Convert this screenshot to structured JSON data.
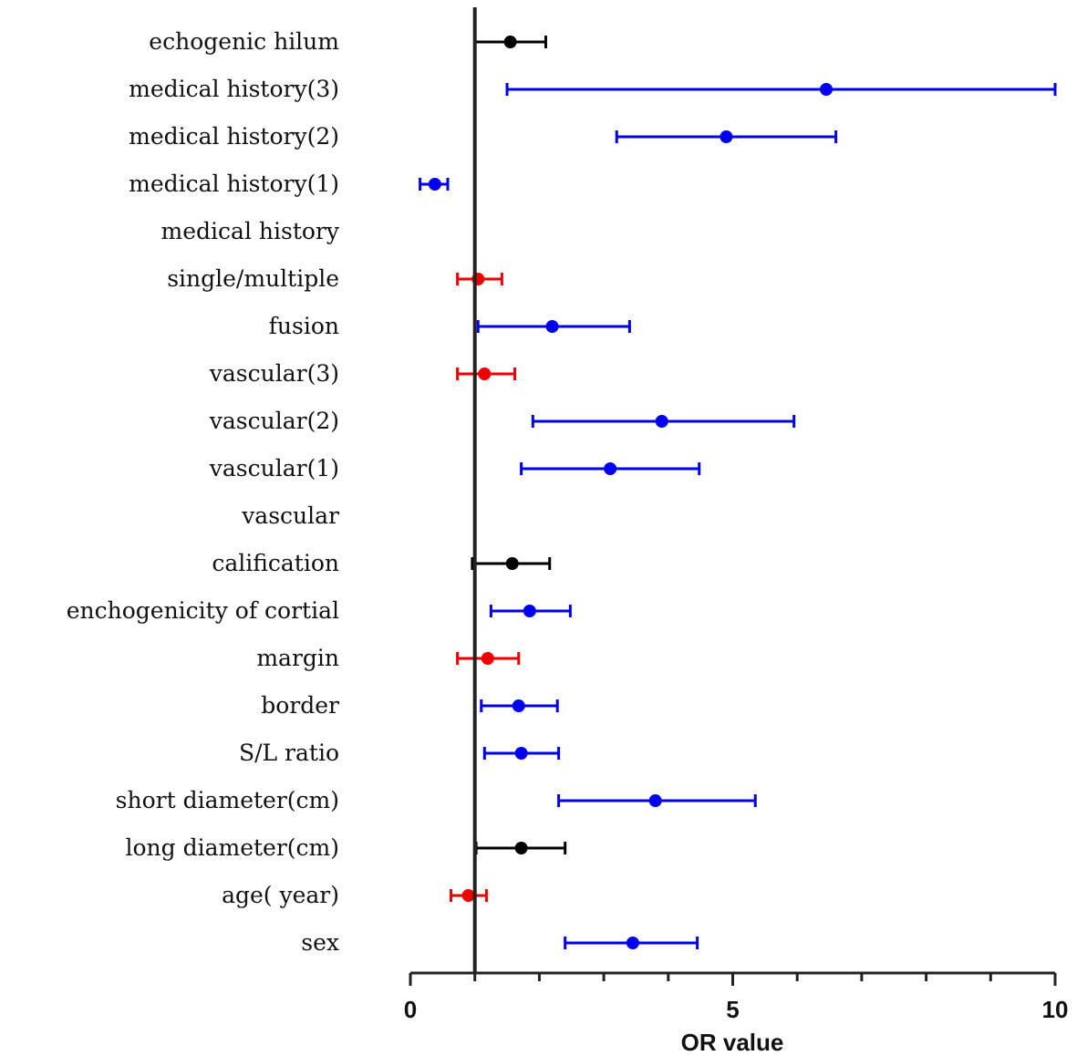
{
  "chart_data": {
    "type": "forest",
    "xlabel": "OR value",
    "xlim": [
      0,
      10
    ],
    "reference_line": 1,
    "major_ticks": [
      0,
      5,
      10
    ],
    "minor_step": 1,
    "colors": {
      "black": "#000000",
      "blue": "#0000ee",
      "red": "#ee0000"
    },
    "rows": [
      {
        "label": "echogenic hilum",
        "or": 1.55,
        "lo": 1.0,
        "hi": 2.1,
        "color": "black"
      },
      {
        "label": "medical history(3)",
        "or": 6.45,
        "lo": 1.5,
        "hi": 10.0,
        "color": "blue"
      },
      {
        "label": "medical history(2)",
        "or": 4.9,
        "lo": 3.2,
        "hi": 6.6,
        "color": "blue"
      },
      {
        "label": "medical history(1)",
        "or": 0.38,
        "lo": 0.15,
        "hi": 0.58,
        "color": "blue"
      },
      {
        "label": "medical history",
        "or": null,
        "lo": null,
        "hi": null,
        "color": "black"
      },
      {
        "label": "single/multiple",
        "or": 1.05,
        "lo": 0.73,
        "hi": 1.42,
        "color": "red"
      },
      {
        "label": "fusion",
        "or": 2.2,
        "lo": 1.05,
        "hi": 3.4,
        "color": "blue"
      },
      {
        "label": "vascular(3)",
        "or": 1.15,
        "lo": 0.73,
        "hi": 1.62,
        "color": "red"
      },
      {
        "label": "vascular(2)",
        "or": 3.9,
        "lo": 1.9,
        "hi": 5.95,
        "color": "blue"
      },
      {
        "label": "vascular(1)",
        "or": 3.1,
        "lo": 1.72,
        "hi": 4.48,
        "color": "blue"
      },
      {
        "label": "vascular",
        "or": null,
        "lo": null,
        "hi": null,
        "color": "black"
      },
      {
        "label": "calification",
        "or": 1.58,
        "lo": 0.96,
        "hi": 2.16,
        "color": "black"
      },
      {
        "label": "enchogenicity of cortial",
        "or": 1.85,
        "lo": 1.25,
        "hi": 2.48,
        "color": "blue"
      },
      {
        "label": "margin",
        "or": 1.2,
        "lo": 0.73,
        "hi": 1.68,
        "color": "red"
      },
      {
        "label": "border",
        "or": 1.68,
        "lo": 1.1,
        "hi": 2.28,
        "color": "blue"
      },
      {
        "label": "S/L ratio",
        "or": 1.72,
        "lo": 1.15,
        "hi": 2.3,
        "color": "blue"
      },
      {
        "label": "short diameter(cm)",
        "or": 3.8,
        "lo": 2.3,
        "hi": 5.35,
        "color": "blue"
      },
      {
        "label": "long diameter(cm)",
        "or": 1.72,
        "lo": 1.02,
        "hi": 2.4,
        "color": "black"
      },
      {
        "label": "age( year)",
        "or": 0.9,
        "lo": 0.63,
        "hi": 1.18,
        "color": "red"
      },
      {
        "label": "sex",
        "or": 3.45,
        "lo": 2.4,
        "hi": 4.45,
        "color": "blue"
      }
    ]
  }
}
